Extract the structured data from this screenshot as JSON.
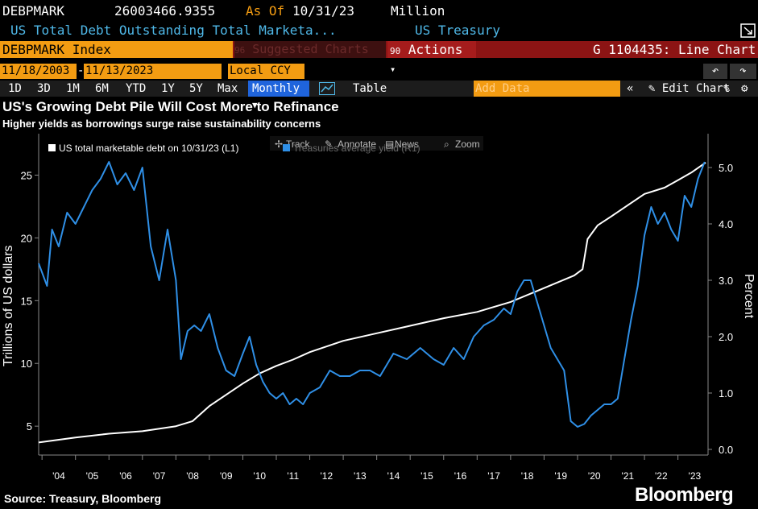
{
  "header": {
    "ticker": "DEBPMARK",
    "value": "26003466.9355",
    "asof_label": "As Of",
    "asof_date": "10/31/23",
    "units": "Million",
    "description": "US Total Debt Outstanding Total Marketa...",
    "source_name": "US Treasury"
  },
  "toolbar": {
    "security": "DEBPMARK Index",
    "suggested_charts": "Suggested Charts",
    "actions_num": "90",
    "actions_label": "Actions",
    "chart_id": "G 1104435: Line Chart",
    "suggested_num": "96"
  },
  "range": {
    "start": "11/18/2003",
    "end": "11/13/2023",
    "currency": "Local CCY",
    "undo_icon": "undo-icon",
    "redo_icon": "redo-icon"
  },
  "periods": [
    "1D",
    "3D",
    "1M",
    "6M",
    "YTD",
    "1Y",
    "5Y",
    "Max"
  ],
  "frequency": "Monthly",
  "table_label": "Table",
  "add_data_placeholder": "Add Data",
  "edit_chart_label": "Edit Chart",
  "chart_tools": [
    "Track",
    "Annotate",
    "News",
    "Zoom"
  ],
  "colors": {
    "debt_line": "#ffffff",
    "yield_line": "#2f8fe6",
    "orange": "#f39c12",
    "header_blue": "#4fb8e8",
    "toolbar_red": "#8c1414",
    "highlight_blue": "#1f64dc"
  },
  "footer": {
    "source": "Source: Treasury, Bloomberg",
    "brand": "Bloomberg"
  },
  "chart_data": {
    "type": "line",
    "title": "US's Growing Debt Pile Will Cost More to Refinance",
    "subtitle": "Higher yields as borrowings surge raise sustainability concerns",
    "ylabel_left": "Trillions of US dollars",
    "ylabel_right": "Percent",
    "ylim_left": [
      2.7,
      28.3
    ],
    "ylim_right": [
      -0.1,
      5.6
    ],
    "yticks_left": [
      5,
      10,
      15,
      20,
      25
    ],
    "yticks_right": [
      "0.0",
      "1.0",
      "2.0",
      "3.0",
      "4.0",
      "5.0"
    ],
    "xlim": [
      2003.9,
      2023.9
    ],
    "xtick_labels": [
      "'04",
      "'05",
      "'06",
      "'07",
      "'08",
      "'09",
      "'10",
      "'11",
      "'12",
      "'13",
      "'14",
      "'15",
      "'16",
      "'17",
      "'18",
      "'19",
      "'20",
      "'21",
      "'22",
      "'23"
    ],
    "legend_placement": "top-left",
    "grid": false,
    "series": [
      {
        "name": "US total marketable debt on 10/31/23 (L1)",
        "axis": "left",
        "x": [
          2003.9,
          2005,
          2006,
          2007,
          2008,
          2008.5,
          2009,
          2009.5,
          2010,
          2010.5,
          2011,
          2011.5,
          2012,
          2013,
          2014,
          2015,
          2016,
          2017,
          2018,
          2019,
          2019.9,
          2020.15,
          2020.3,
          2020.6,
          2021,
          2022,
          2022.6,
          2023,
          2023.4,
          2023.83
        ],
        "values": [
          3.7,
          4.1,
          4.4,
          4.6,
          5.0,
          5.4,
          6.6,
          7.5,
          8.4,
          9.2,
          9.8,
          10.3,
          10.9,
          11.8,
          12.4,
          13.0,
          13.6,
          14.1,
          14.9,
          16.0,
          17.0,
          17.5,
          19.9,
          21.0,
          21.7,
          23.5,
          24.0,
          24.6,
          25.2,
          26.0
        ]
      },
      {
        "name": "Treasuries average yield (R1)",
        "axis": "right",
        "x": [
          2003.9,
          2004.15,
          2004.3,
          2004.5,
          2004.75,
          2005,
          2005.25,
          2005.5,
          2005.75,
          2006,
          2006.25,
          2006.5,
          2006.75,
          2007,
          2007.25,
          2007.5,
          2007.75,
          2008,
          2008.15,
          2008.35,
          2008.55,
          2008.75,
          2009,
          2009.25,
          2009.5,
          2009.75,
          2010,
          2010.2,
          2010.4,
          2010.6,
          2010.8,
          2011,
          2011.2,
          2011.4,
          2011.6,
          2011.8,
          2012,
          2012.3,
          2012.6,
          2012.9,
          2013.2,
          2013.5,
          2013.8,
          2014.1,
          2014.5,
          2014.9,
          2015.3,
          2015.7,
          2016,
          2016.3,
          2016.6,
          2016.9,
          2017.2,
          2017.5,
          2017.8,
          2018,
          2018.2,
          2018.4,
          2018.6,
          2018.8,
          2019,
          2019.2,
          2019.4,
          2019.6,
          2019.8,
          2020,
          2020.2,
          2020.4,
          2020.6,
          2020.8,
          2021,
          2021.2,
          2021.4,
          2021.6,
          2021.8,
          2022,
          2022.2,
          2022.4,
          2022.6,
          2022.8,
          2023,
          2023.2,
          2023.4,
          2023.6,
          2023.8
        ],
        "values": [
          3.3,
          2.9,
          3.9,
          3.6,
          4.2,
          4.0,
          4.3,
          4.6,
          4.8,
          5.1,
          4.7,
          4.9,
          4.6,
          5.0,
          3.6,
          3.0,
          3.9,
          3.0,
          1.6,
          2.1,
          2.2,
          2.1,
          2.4,
          1.8,
          1.4,
          1.3,
          1.7,
          2.0,
          1.5,
          1.2,
          1.0,
          0.9,
          1.0,
          0.8,
          0.9,
          0.8,
          1.0,
          1.1,
          1.4,
          1.3,
          1.3,
          1.4,
          1.4,
          1.3,
          1.7,
          1.6,
          1.8,
          1.6,
          1.5,
          1.8,
          1.6,
          2.0,
          2.2,
          2.3,
          2.5,
          2.4,
          2.8,
          3.0,
          3.0,
          2.6,
          2.2,
          1.8,
          1.6,
          1.4,
          0.5,
          0.4,
          0.45,
          0.6,
          0.7,
          0.8,
          0.8,
          0.9,
          1.6,
          2.3,
          2.9,
          3.8,
          4.3,
          4.0,
          4.2,
          3.9,
          3.7,
          4.5,
          4.3,
          4.8,
          5.1
        ]
      }
    ]
  }
}
